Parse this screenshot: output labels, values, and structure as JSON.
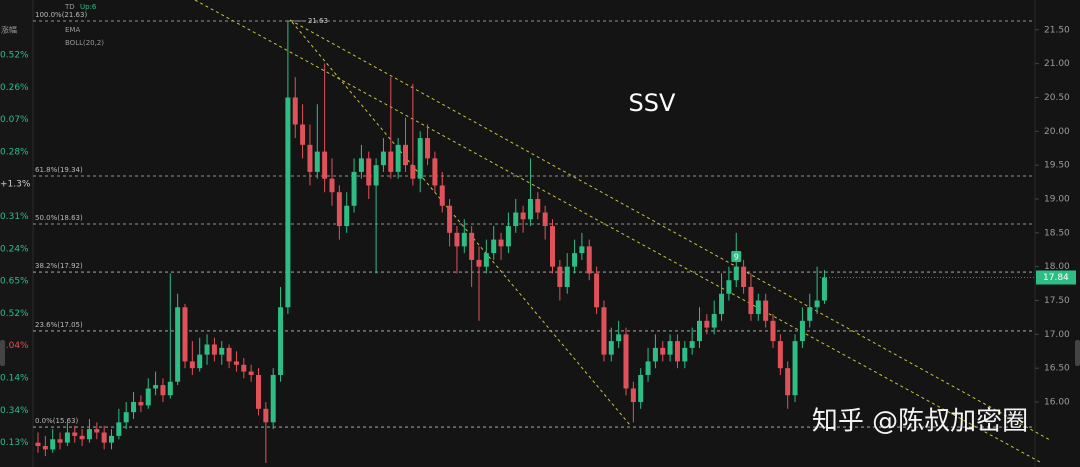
{
  "chart_data": {
    "type": "candlestick",
    "title": "SSV",
    "indicators": [
      "TD",
      "Up:6",
      "EMA",
      "BOLL(20,2)"
    ],
    "left_column": {
      "header": "涨幅",
      "items": [
        {
          "text": "0.52%",
          "color": "#2ebd85"
        },
        {
          "text": "0.26%",
          "color": "#2ebd85"
        },
        {
          "text": "0.07%",
          "color": "#2ebd85"
        },
        {
          "text": "0.28%",
          "color": "#2ebd85"
        },
        {
          "text": "+1.3%",
          "color": "#d0d0d0"
        },
        {
          "text": "0.31%",
          "color": "#2ebd85"
        },
        {
          "text": "0.24%",
          "color": "#2ebd85"
        },
        {
          "text": "0.65%",
          "color": "#2ebd85"
        },
        {
          "text": "0.52%",
          "color": "#2ebd85"
        },
        {
          "text": "0.04%",
          "color": "#e0525a"
        },
        {
          "text": "0.14%",
          "color": "#2ebd85"
        },
        {
          "text": "0.34%",
          "color": "#2ebd85"
        },
        {
          "text": "0.13%",
          "color": "#2ebd85"
        }
      ]
    },
    "up_color": "#2ebd85",
    "down_color": "#e0525a",
    "ylim": [
      15.04,
      21.94
    ],
    "yticks": [
      {
        "value": 21.5,
        "label": "21.50"
      },
      {
        "value": 21,
        "label": "21.00"
      },
      {
        "value": 20.5,
        "label": "20.50"
      },
      {
        "value": 20,
        "label": "20.00"
      },
      {
        "value": 19.5,
        "label": "19.50"
      },
      {
        "value": 19,
        "label": "19.00"
      },
      {
        "value": 18.5,
        "label": "18.50"
      },
      {
        "value": 18,
        "label": "18.00"
      },
      {
        "value": 17.5,
        "label": "17.50"
      },
      {
        "value": 17,
        "label": "17.00"
      },
      {
        "value": 16.5,
        "label": "16.50"
      },
      {
        "value": 16,
        "label": "16.00"
      }
    ],
    "fib_levels": [
      {
        "value": 21.63,
        "label": "100.0%(21.63)"
      },
      {
        "value": 19.34,
        "label": "61.8%(19.34)"
      },
      {
        "value": 18.63,
        "label": "50.0%(18.63)"
      },
      {
        "value": 17.92,
        "label": "38.2%(17.92)"
      },
      {
        "value": 17.05,
        "label": "23.6%(17.05)"
      },
      {
        "value": 15.63,
        "label": "0.0%(15.63)"
      }
    ],
    "peak_label": {
      "value": 21.63,
      "text": "21.63"
    },
    "last_price": 17.84,
    "td_marker": "9",
    "watermark": "知乎 @陈叔加密圈",
    "ohlc": [
      [
        15.4,
        15.55,
        15.25,
        15.35
      ],
      [
        15.35,
        15.5,
        15.2,
        15.3
      ],
      [
        15.3,
        15.6,
        15.25,
        15.45
      ],
      [
        15.45,
        15.55,
        15.3,
        15.4
      ],
      [
        15.4,
        15.7,
        15.35,
        15.55
      ],
      [
        15.55,
        15.65,
        15.4,
        15.5
      ],
      [
        15.5,
        15.6,
        15.35,
        15.45
      ],
      [
        15.45,
        15.75,
        15.4,
        15.6
      ],
      [
        15.6,
        15.7,
        15.45,
        15.55
      ],
      [
        15.55,
        15.65,
        15.3,
        15.4
      ],
      [
        15.4,
        15.6,
        15.3,
        15.5
      ],
      [
        15.5,
        15.9,
        15.45,
        15.7
      ],
      [
        15.7,
        16.0,
        15.6,
        15.85
      ],
      [
        15.85,
        16.15,
        15.75,
        16.0
      ],
      [
        16.0,
        16.1,
        15.85,
        15.95
      ],
      [
        15.95,
        16.35,
        15.9,
        16.2
      ],
      [
        16.2,
        16.45,
        16.1,
        16.25
      ],
      [
        16.25,
        16.35,
        16.0,
        16.1
      ],
      [
        16.1,
        17.9,
        16.05,
        16.3
      ],
      [
        16.3,
        17.6,
        16.25,
        17.4
      ],
      [
        17.4,
        17.45,
        16.5,
        16.6
      ],
      [
        16.6,
        16.9,
        16.4,
        16.5
      ],
      [
        16.5,
        16.95,
        16.45,
        16.7
      ],
      [
        16.7,
        17.0,
        16.55,
        16.85
      ],
      [
        16.85,
        16.95,
        16.6,
        16.7
      ],
      [
        16.7,
        16.9,
        16.55,
        16.8
      ],
      [
        16.8,
        16.85,
        16.5,
        16.6
      ],
      [
        16.6,
        16.75,
        16.45,
        16.55
      ],
      [
        16.55,
        16.65,
        16.35,
        16.45
      ],
      [
        16.45,
        16.55,
        16.3,
        16.4
      ],
      [
        16.4,
        16.5,
        15.8,
        15.9
      ],
      [
        15.9,
        16.0,
        15.1,
        15.7
      ],
      [
        15.7,
        16.5,
        15.6,
        16.4
      ],
      [
        16.4,
        17.7,
        16.3,
        17.4
      ],
      [
        17.4,
        21.63,
        17.3,
        20.5
      ],
      [
        20.5,
        20.8,
        19.9,
        20.1
      ],
      [
        20.1,
        20.4,
        19.6,
        19.8
      ],
      [
        19.8,
        20.1,
        19.2,
        19.4
      ],
      [
        19.4,
        20.4,
        19.3,
        19.7
      ],
      [
        19.7,
        21.0,
        19.1,
        19.3
      ],
      [
        19.3,
        19.6,
        18.9,
        19.1
      ],
      [
        19.1,
        19.2,
        18.4,
        18.6
      ],
      [
        18.6,
        19.1,
        18.5,
        18.9
      ],
      [
        18.9,
        19.6,
        18.8,
        19.4
      ],
      [
        19.4,
        19.8,
        19.3,
        19.6
      ],
      [
        19.6,
        19.7,
        19.0,
        19.2
      ],
      [
        19.2,
        19.6,
        17.9,
        19.5
      ],
      [
        19.5,
        19.9,
        19.4,
        19.7
      ],
      [
        19.7,
        20.8,
        19.3,
        19.4
      ],
      [
        19.4,
        19.9,
        19.3,
        19.8
      ],
      [
        19.8,
        20.2,
        19.4,
        19.5
      ],
      [
        19.5,
        20.7,
        19.2,
        19.3
      ],
      [
        19.3,
        20.0,
        19.1,
        19.9
      ],
      [
        19.9,
        20.1,
        19.5,
        19.6
      ],
      [
        19.6,
        19.7,
        19.1,
        19.2
      ],
      [
        19.2,
        19.4,
        18.8,
        18.9
      ],
      [
        18.9,
        19.0,
        18.3,
        18.5
      ],
      [
        18.5,
        18.6,
        17.9,
        18.3
      ],
      [
        18.3,
        18.7,
        18.2,
        18.5
      ],
      [
        18.5,
        18.6,
        17.7,
        18.1
      ],
      [
        18.1,
        18.3,
        17.2,
        18.0
      ],
      [
        18.0,
        18.4,
        17.9,
        18.2
      ],
      [
        18.2,
        18.6,
        18.1,
        18.4
      ],
      [
        18.4,
        18.5,
        18.1,
        18.3
      ],
      [
        18.3,
        18.8,
        18.2,
        18.6
      ],
      [
        18.6,
        19.0,
        18.5,
        18.8
      ],
      [
        18.8,
        18.9,
        18.5,
        18.7
      ],
      [
        18.7,
        19.6,
        18.6,
        19.0
      ],
      [
        19.0,
        19.1,
        18.7,
        18.8
      ],
      [
        18.8,
        18.9,
        18.4,
        18.6
      ],
      [
        18.6,
        18.7,
        17.9,
        18.0
      ],
      [
        18.0,
        18.1,
        17.5,
        17.7
      ],
      [
        17.7,
        18.2,
        17.6,
        18.0
      ],
      [
        18.0,
        18.4,
        17.9,
        18.2
      ],
      [
        18.2,
        18.5,
        18.1,
        18.3
      ],
      [
        18.3,
        18.4,
        17.8,
        17.9
      ],
      [
        17.9,
        18.0,
        17.3,
        17.4
      ],
      [
        17.4,
        17.5,
        16.6,
        16.7
      ],
      [
        16.7,
        17.1,
        16.6,
        16.9
      ],
      [
        16.9,
        17.2,
        16.8,
        17.0
      ],
      [
        17.0,
        17.1,
        16.1,
        16.2
      ],
      [
        16.2,
        16.3,
        15.7,
        16.0
      ],
      [
        16.0,
        16.5,
        15.9,
        16.4
      ],
      [
        16.4,
        16.8,
        16.3,
        16.6
      ],
      [
        16.6,
        17.0,
        16.5,
        16.8
      ],
      [
        16.8,
        16.9,
        16.6,
        16.7
      ],
      [
        16.7,
        17.0,
        16.6,
        16.9
      ],
      [
        16.9,
        17.0,
        16.5,
        16.6
      ],
      [
        16.6,
        16.9,
        16.5,
        16.8
      ],
      [
        16.8,
        17.1,
        16.7,
        16.9
      ],
      [
        16.9,
        17.4,
        16.8,
        17.2
      ],
      [
        17.2,
        17.3,
        17.0,
        17.1
      ],
      [
        17.1,
        17.5,
        17.0,
        17.3
      ],
      [
        17.3,
        17.9,
        17.2,
        17.6
      ],
      [
        17.6,
        18.0,
        17.5,
        17.8
      ],
      [
        17.8,
        18.5,
        17.7,
        18.0
      ],
      [
        18.0,
        18.1,
        17.6,
        17.7
      ],
      [
        17.7,
        17.9,
        17.2,
        17.3
      ],
      [
        17.3,
        17.6,
        17.2,
        17.5
      ],
      [
        17.5,
        17.6,
        17.1,
        17.2
      ],
      [
        17.2,
        17.3,
        16.8,
        16.9
      ],
      [
        16.9,
        17.0,
        16.4,
        16.5
      ],
      [
        16.5,
        16.6,
        15.9,
        16.1
      ],
      [
        16.1,
        17.0,
        16.0,
        16.9
      ],
      [
        16.9,
        17.4,
        16.8,
        17.2
      ],
      [
        17.2,
        17.6,
        17.1,
        17.4
      ],
      [
        17.4,
        18.0,
        17.3,
        17.5
      ],
      [
        17.5,
        17.95,
        17.45,
        17.84
      ]
    ]
  }
}
